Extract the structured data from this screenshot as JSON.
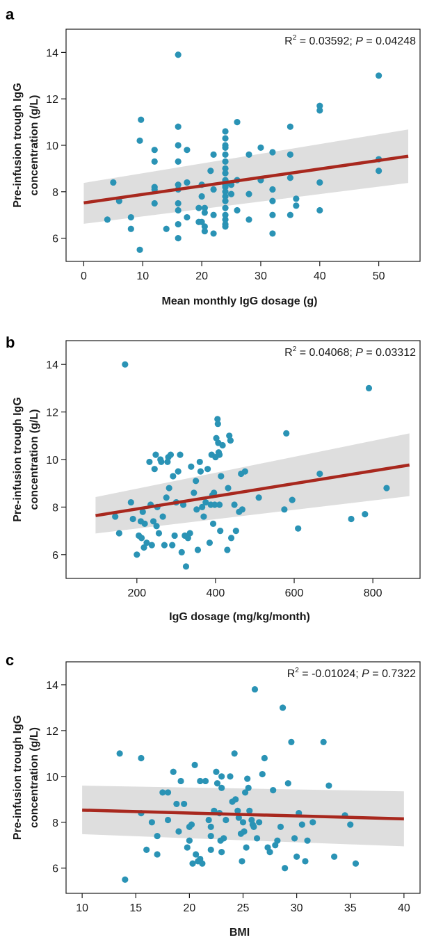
{
  "colors": {
    "point": "#2a93b5",
    "fit": "#a8281e",
    "ci": "#dedede",
    "axis": "#1a1a1a"
  },
  "chart_data": [
    {
      "panel": "a",
      "type": "scatter",
      "xlabel": "Mean monthly IgG dosage (g)",
      "ylabel": [
        "Pre-infusion trough IgG",
        "concentration (g/L)"
      ],
      "annotation": {
        "r2_label": "R",
        "r2_sup": "2",
        "r2_value": " = 0.03592; ",
        "p_label": "P",
        "p_value": " = 0.04248"
      },
      "xlim": [
        -3,
        57
      ],
      "ylim": [
        5.0,
        15.0
      ],
      "xticks": [
        0,
        10,
        20,
        30,
        40,
        50
      ],
      "yticks": [
        6,
        8,
        10,
        12,
        14
      ],
      "fit": {
        "x": [
          0,
          55
        ],
        "y": [
          7.52,
          9.53
        ]
      },
      "ci": {
        "x": [
          0,
          55
        ],
        "upper": [
          8.38,
          10.68
        ],
        "lower": [
          6.62,
          8.38
        ]
      },
      "points": [
        [
          4,
          6.8
        ],
        [
          5,
          8.4
        ],
        [
          6,
          7.6
        ],
        [
          8,
          6.9
        ],
        [
          8,
          6.4
        ],
        [
          9.5,
          5.5
        ],
        [
          9.5,
          10.2
        ],
        [
          9.7,
          11.1
        ],
        [
          12,
          9.8
        ],
        [
          12,
          9.3
        ],
        [
          12,
          8.2
        ],
        [
          12,
          8.1
        ],
        [
          12,
          7.5
        ],
        [
          14,
          6.4
        ],
        [
          16,
          13.9
        ],
        [
          16,
          10.8
        ],
        [
          16,
          10.0
        ],
        [
          16,
          9.3
        ],
        [
          16,
          8.3
        ],
        [
          16,
          8.1
        ],
        [
          16,
          7.5
        ],
        [
          16,
          7.2
        ],
        [
          16,
          6.6
        ],
        [
          16,
          6.0
        ],
        [
          17.5,
          9.8
        ],
        [
          17.5,
          8.4
        ],
        [
          17.5,
          6.9
        ],
        [
          19.5,
          6.7
        ],
        [
          19.5,
          7.3
        ],
        [
          20,
          8.3
        ],
        [
          20,
          7.8
        ],
        [
          20,
          6.7
        ],
        [
          20.5,
          7.3
        ],
        [
          20.5,
          6.5
        ],
        [
          20.5,
          6.3
        ],
        [
          20.5,
          7.1
        ],
        [
          21.5,
          8.9
        ],
        [
          22,
          9.6
        ],
        [
          22,
          8.1
        ],
        [
          22,
          6.2
        ],
        [
          22,
          7.0
        ],
        [
          24,
          10.6
        ],
        [
          24,
          10.3
        ],
        [
          24,
          10.0
        ],
        [
          24,
          9.9
        ],
        [
          24,
          9.6
        ],
        [
          24,
          9.3
        ],
        [
          24,
          9.0
        ],
        [
          24,
          8.8
        ],
        [
          24,
          8.5
        ],
        [
          24,
          8.3
        ],
        [
          24,
          8.2
        ],
        [
          24,
          8.0
        ],
        [
          24,
          7.8
        ],
        [
          24,
          7.6
        ],
        [
          24,
          7.3
        ],
        [
          24,
          7.0
        ],
        [
          24,
          6.8
        ],
        [
          24,
          6.6
        ],
        [
          24,
          6.5
        ],
        [
          25,
          7.9
        ],
        [
          25,
          8.3
        ],
        [
          26,
          11.0
        ],
        [
          26,
          8.5
        ],
        [
          26,
          7.2
        ],
        [
          28,
          9.6
        ],
        [
          28,
          7.9
        ],
        [
          28,
          6.8
        ],
        [
          30,
          9.9
        ],
        [
          30,
          8.5
        ],
        [
          32,
          9.7
        ],
        [
          32,
          8.1
        ],
        [
          32,
          7.6
        ],
        [
          32,
          7.0
        ],
        [
          32,
          6.2
        ],
        [
          35,
          10.8
        ],
        [
          35,
          9.6
        ],
        [
          35,
          8.6
        ],
        [
          35,
          7.0
        ],
        [
          36,
          7.7
        ],
        [
          36,
          7.4
        ],
        [
          40,
          11.7
        ],
        [
          40,
          11.5
        ],
        [
          40,
          8.4
        ],
        [
          40,
          7.2
        ],
        [
          50,
          13.0
        ],
        [
          50,
          9.4
        ],
        [
          50,
          8.9
        ]
      ]
    },
    {
      "panel": "b",
      "type": "scatter",
      "xlabel": "IgG dosage (mg/kg/month)",
      "ylabel": [
        "Pre-infusion trough IgG",
        "concentration (g/L)"
      ],
      "annotation": {
        "r2_label": "R",
        "r2_sup": "2",
        "r2_value": " = 0.04068; ",
        "p_label": "P",
        "p_value": " = 0.03312"
      },
      "xlim": [
        20,
        920
      ],
      "ylim": [
        5.0,
        15.0
      ],
      "xticks": [
        200,
        400,
        600,
        800
      ],
      "yticks": [
        6,
        8,
        10,
        12,
        14
      ],
      "fit": {
        "x": [
          95,
          893
        ],
        "y": [
          7.64,
          9.77
        ]
      },
      "ci": {
        "x": [
          95,
          893
        ],
        "upper": [
          8.42,
          11.1
        ],
        "lower": [
          6.89,
          8.46
        ]
      },
      "points": [
        [
          145,
          7.6
        ],
        [
          155,
          6.9
        ],
        [
          170,
          14.0
        ],
        [
          185,
          8.2
        ],
        [
          190,
          7.5
        ],
        [
          200,
          6.0
        ],
        [
          205,
          6.8
        ],
        [
          210,
          7.4
        ],
        [
          212,
          6.7
        ],
        [
          215,
          7.8
        ],
        [
          218,
          6.3
        ],
        [
          220,
          7.3
        ],
        [
          225,
          6.5
        ],
        [
          232,
          9.9
        ],
        [
          235,
          8.1
        ],
        [
          238,
          6.4
        ],
        [
          242,
          7.4
        ],
        [
          245,
          9.6
        ],
        [
          248,
          10.2
        ],
        [
          250,
          7.2
        ],
        [
          252,
          8.0
        ],
        [
          256,
          6.9
        ],
        [
          260,
          10.0
        ],
        [
          262,
          9.9
        ],
        [
          266,
          7.6
        ],
        [
          270,
          6.4
        ],
        [
          275,
          8.4
        ],
        [
          278,
          9.9
        ],
        [
          280,
          10.1
        ],
        [
          282,
          8.8
        ],
        [
          286,
          10.2
        ],
        [
          290,
          6.4
        ],
        [
          292,
          9.3
        ],
        [
          296,
          6.8
        ],
        [
          300,
          8.2
        ],
        [
          305,
          9.5
        ],
        [
          310,
          10.2
        ],
        [
          314,
          6.1
        ],
        [
          318,
          8.1
        ],
        [
          322,
          6.8
        ],
        [
          325,
          5.5
        ],
        [
          330,
          6.7
        ],
        [
          335,
          6.9
        ],
        [
          338,
          9.7
        ],
        [
          345,
          8.6
        ],
        [
          350,
          9.1
        ],
        [
          352,
          7.9
        ],
        [
          355,
          6.2
        ],
        [
          360,
          9.9
        ],
        [
          362,
          9.5
        ],
        [
          366,
          8.0
        ],
        [
          370,
          7.6
        ],
        [
          375,
          8.2
        ],
        [
          380,
          9.6
        ],
        [
          385,
          6.5
        ],
        [
          388,
          8.1
        ],
        [
          390,
          10.2
        ],
        [
          392,
          8.5
        ],
        [
          394,
          7.3
        ],
        [
          396,
          8.6
        ],
        [
          398,
          8.1
        ],
        [
          400,
          10.1
        ],
        [
          402,
          10.9
        ],
        [
          405,
          11.7
        ],
        [
          406,
          11.5
        ],
        [
          407,
          10.7
        ],
        [
          408,
          10.3
        ],
        [
          410,
          10.2
        ],
        [
          410,
          8.1
        ],
        [
          412,
          7.0
        ],
        [
          414,
          9.3
        ],
        [
          418,
          10.6
        ],
        [
          430,
          6.2
        ],
        [
          432,
          8.8
        ],
        [
          435,
          11.0
        ],
        [
          438,
          10.8
        ],
        [
          440,
          6.7
        ],
        [
          448,
          8.1
        ],
        [
          452,
          7.0
        ],
        [
          460,
          7.8
        ],
        [
          465,
          9.4
        ],
        [
          468,
          7.9
        ],
        [
          475,
          9.5
        ],
        [
          510,
          8.4
        ],
        [
          575,
          7.9
        ],
        [
          580,
          11.1
        ],
        [
          595,
          8.3
        ],
        [
          610,
          7.1
        ],
        [
          665,
          9.4
        ],
        [
          745,
          7.5
        ],
        [
          780,
          7.7
        ],
        [
          790,
          13.0
        ],
        [
          835,
          8.8
        ]
      ]
    },
    {
      "panel": "c",
      "type": "scatter",
      "xlabel": "BMI",
      "ylabel": [
        "Pre-infusion trough IgG",
        "concentration (g/L)"
      ],
      "annotation": {
        "r2_label": "R",
        "r2_sup": "2",
        "r2_value": " = -0.01024; ",
        "p_label": "P",
        "p_value": " = 0.7322"
      },
      "xlim": [
        8.5,
        41.5
      ],
      "ylim": [
        4.9,
        15.0
      ],
      "xticks": [
        10,
        15,
        20,
        25,
        30,
        35,
        40
      ],
      "yticks": [
        6,
        8,
        10,
        12,
        14
      ],
      "fit": {
        "x": [
          10,
          40
        ],
        "y": [
          8.53,
          8.15
        ]
      },
      "ci": {
        "x": [
          10,
          40
        ],
        "upper": [
          9.6,
          9.35
        ],
        "lower": [
          7.48,
          6.95
        ]
      },
      "points": [
        [
          13.5,
          11.0
        ],
        [
          14,
          5.5
        ],
        [
          15.5,
          8.4
        ],
        [
          15.5,
          10.8
        ],
        [
          16,
          6.8
        ],
        [
          16.5,
          8.0
        ],
        [
          17,
          7.4
        ],
        [
          17,
          6.6
        ],
        [
          17.5,
          9.3
        ],
        [
          18,
          9.3
        ],
        [
          18,
          8.1
        ],
        [
          18.5,
          10.2
        ],
        [
          18.8,
          8.8
        ],
        [
          19,
          7.6
        ],
        [
          19.2,
          9.8
        ],
        [
          19.5,
          8.8
        ],
        [
          19.8,
          6.9
        ],
        [
          20,
          7.8
        ],
        [
          20,
          7.2
        ],
        [
          20.2,
          7.9
        ],
        [
          20.3,
          6.2
        ],
        [
          20.5,
          10.5
        ],
        [
          20.6,
          6.6
        ],
        [
          20.8,
          6.3
        ],
        [
          21,
          6.4
        ],
        [
          21,
          9.8
        ],
        [
          21.2,
          6.2
        ],
        [
          21.5,
          9.8
        ],
        [
          21.8,
          8.1
        ],
        [
          22,
          7.8
        ],
        [
          22,
          7.4
        ],
        [
          22,
          6.8
        ],
        [
          22.3,
          8.5
        ],
        [
          22.5,
          10.2
        ],
        [
          22.6,
          9.7
        ],
        [
          22.8,
          8.4
        ],
        [
          22.9,
          7.2
        ],
        [
          23,
          10.0
        ],
        [
          23,
          9.5
        ],
        [
          23,
          6.7
        ],
        [
          23.2,
          7.3
        ],
        [
          23.4,
          8.1
        ],
        [
          23.8,
          10.0
        ],
        [
          24,
          8.9
        ],
        [
          24.2,
          11.0
        ],
        [
          24.3,
          9.0
        ],
        [
          24.5,
          8.5
        ],
        [
          24.6,
          8.2
        ],
        [
          24.8,
          7.5
        ],
        [
          24.9,
          6.3
        ],
        [
          25,
          8.0
        ],
        [
          25.1,
          7.6
        ],
        [
          25.2,
          9.3
        ],
        [
          25.3,
          6.9
        ],
        [
          25.4,
          9.9
        ],
        [
          25.5,
          9.5
        ],
        [
          25.6,
          8.5
        ],
        [
          25.8,
          8.1
        ],
        [
          25.9,
          7.9
        ],
        [
          26,
          7.8
        ],
        [
          26.1,
          13.8
        ],
        [
          26.3,
          7.3
        ],
        [
          26.5,
          8.0
        ],
        [
          26.8,
          10.1
        ],
        [
          27,
          10.8
        ],
        [
          27.3,
          6.9
        ],
        [
          27.5,
          6.7
        ],
        [
          27.8,
          9.4
        ],
        [
          28,
          7.0
        ],
        [
          28.2,
          7.2
        ],
        [
          28.5,
          7.8
        ],
        [
          28.7,
          13.0
        ],
        [
          28.9,
          6.0
        ],
        [
          29.2,
          9.7
        ],
        [
          29.5,
          11.5
        ],
        [
          29.8,
          7.3
        ],
        [
          30,
          6.5
        ],
        [
          30.2,
          8.4
        ],
        [
          30.5,
          7.9
        ],
        [
          30.8,
          6.3
        ],
        [
          31,
          7.2
        ],
        [
          31.5,
          8.0
        ],
        [
          32.5,
          11.5
        ],
        [
          33,
          9.6
        ],
        [
          33.5,
          6.5
        ],
        [
          34.5,
          8.3
        ],
        [
          35,
          7.9
        ],
        [
          35.5,
          6.2
        ]
      ]
    }
  ]
}
